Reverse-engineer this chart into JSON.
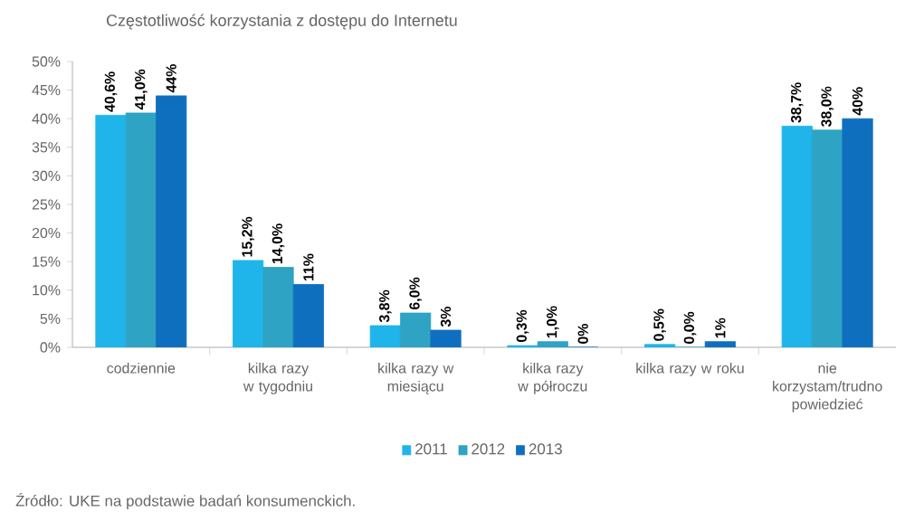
{
  "chart_data": {
    "type": "bar",
    "title": "Częstotliwość korzystania z dostępu do Internetu",
    "categories": [
      "codziennie",
      "kilka razy w tygodniu",
      "kilka razy w miesiącu",
      "kilka razy w półroczu",
      "kilka razy w roku",
      "nie korzystam/trudno powiedzieć"
    ],
    "series": [
      {
        "name": "2011",
        "color": "#1fb5ea",
        "values": [
          40.6,
          15.2,
          3.8,
          0.3,
          0.5,
          38.7
        ],
        "value_labels": [
          "40,6%",
          "15,2%",
          "3,8%",
          "0,3%",
          "0,5%",
          "38,7%"
        ]
      },
      {
        "name": "2012",
        "color": "#2ea3c4",
        "values": [
          41.0,
          14.0,
          6.0,
          1.0,
          0.0,
          38.0
        ],
        "value_labels": [
          "41,0%",
          "14,0%",
          "6,0%",
          "1,0%",
          "0,0%",
          "38,0%"
        ]
      },
      {
        "name": "2013",
        "color": "#0f6fbf",
        "values": [
          44,
          11,
          3,
          0,
          1,
          40
        ],
        "value_labels": [
          "44%",
          "11%",
          "3%",
          "0%",
          "1%",
          "40%"
        ]
      }
    ],
    "ylim": [
      0,
      50
    ],
    "yticks": [
      {
        "value": 0,
        "label": "0%"
      },
      {
        "value": 5,
        "label": "5%"
      },
      {
        "value": 10,
        "label": "10%"
      },
      {
        "value": 15,
        "label": "15%"
      },
      {
        "value": 20,
        "label": "20%"
      },
      {
        "value": 25,
        "label": "25%"
      },
      {
        "value": 30,
        "label": "30%"
      },
      {
        "value": 35,
        "label": "35%"
      },
      {
        "value": 40,
        "label": "40%"
      },
      {
        "value": 45,
        "label": "45%"
      },
      {
        "value": 50,
        "label": "50%"
      }
    ],
    "legend": "bottom",
    "annotations": [
      "Źródło: UKE na podstawie badań konsumenckich."
    ]
  }
}
